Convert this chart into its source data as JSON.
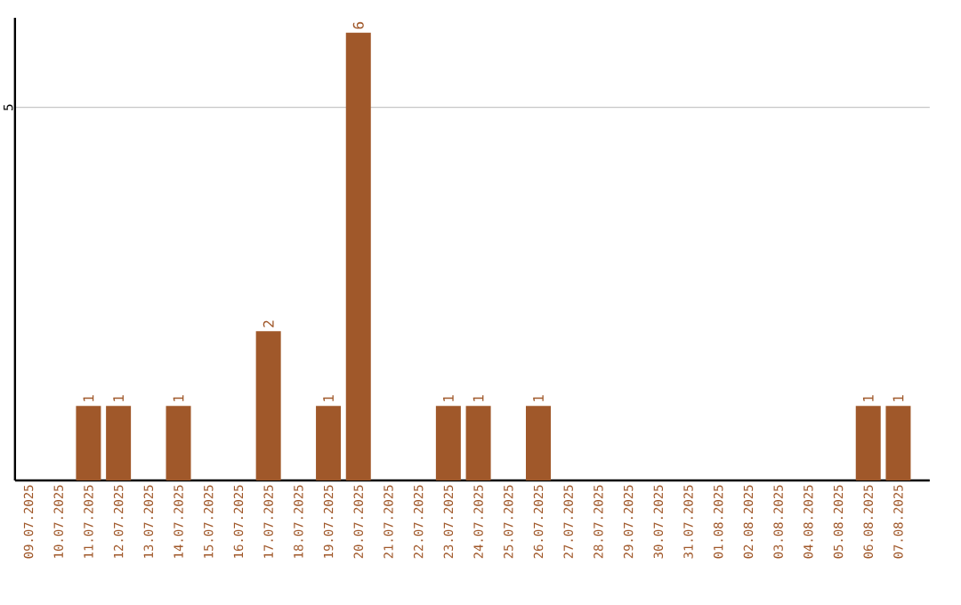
{
  "chart_data": {
    "type": "bar",
    "categories": [
      "09.07.2025",
      "10.07.2025",
      "11.07.2025",
      "12.07.2025",
      "13.07.2025",
      "14.07.2025",
      "15.07.2025",
      "16.07.2025",
      "17.07.2025",
      "18.07.2025",
      "19.07.2025",
      "20.07.2025",
      "21.07.2025",
      "22.07.2025",
      "23.07.2025",
      "24.07.2025",
      "25.07.2025",
      "26.07.2025",
      "27.07.2025",
      "28.07.2025",
      "29.07.2025",
      "30.07.2025",
      "31.07.2025",
      "01.08.2025",
      "02.08.2025",
      "03.08.2025",
      "04.08.2025",
      "05.08.2025",
      "06.08.2025",
      "07.08.2025"
    ],
    "values": [
      0,
      0,
      1,
      1,
      0,
      1,
      0,
      0,
      2,
      0,
      1,
      6,
      0,
      0,
      1,
      1,
      0,
      1,
      0,
      0,
      0,
      0,
      0,
      0,
      0,
      0,
      0,
      0,
      1,
      1
    ],
    "value_labels": [
      null,
      null,
      "1",
      "1",
      null,
      "1",
      null,
      null,
      "2",
      null,
      "1",
      "6",
      null,
      null,
      "1",
      "1",
      null,
      "1",
      null,
      null,
      null,
      null,
      null,
      null,
      null,
      null,
      null,
      null,
      "1",
      "1"
    ],
    "color": "#a0582a",
    "ylim": [
      0,
      6.2
    ],
    "yticks": [
      5
    ],
    "grid": "y"
  }
}
